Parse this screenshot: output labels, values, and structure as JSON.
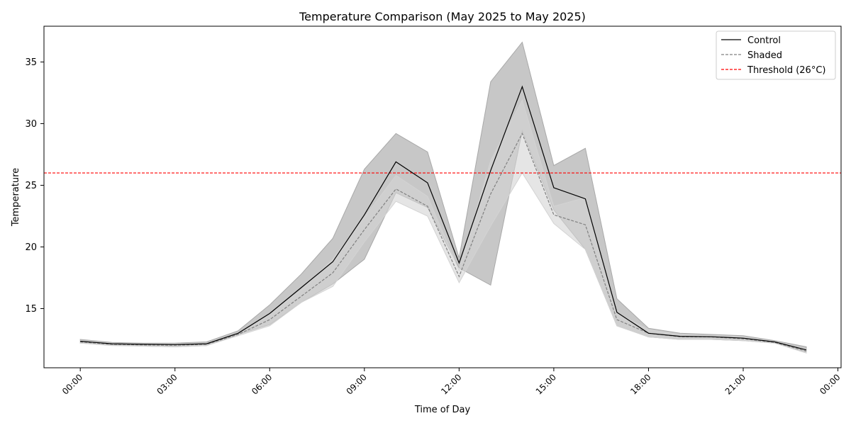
{
  "chart_data": {
    "type": "line",
    "title": "Temperature Comparison (May 2025 to May 2025)",
    "xlabel": "Time of Day",
    "ylabel": "Temperature",
    "x_hours": [
      0,
      1,
      2,
      3,
      4,
      5,
      6,
      7,
      8,
      9,
      10,
      11,
      12,
      13,
      14,
      15,
      16,
      17,
      18,
      19,
      20,
      21,
      22,
      23
    ],
    "x_ticks": [
      {
        "hour": 0,
        "label": "00:00"
      },
      {
        "hour": 3,
        "label": "03:00"
      },
      {
        "hour": 6,
        "label": "06:00"
      },
      {
        "hour": 9,
        "label": "09:00"
      },
      {
        "hour": 12,
        "label": "12:00"
      },
      {
        "hour": 15,
        "label": "15:00"
      },
      {
        "hour": 18,
        "label": "18:00"
      },
      {
        "hour": 21,
        "label": "21:00"
      },
      {
        "hour": 24,
        "label": "00:00"
      }
    ],
    "y_ticks": [
      15,
      20,
      25,
      30,
      35
    ],
    "xlim": [
      -1.15,
      24.1
    ],
    "ylim": [
      10.2,
      37.9
    ],
    "grid": false,
    "legend_position": "top-right",
    "series": [
      {
        "name": "Control",
        "color": "#000000",
        "dash": "solid",
        "values": [
          12.35,
          12.15,
          12.1,
          12.08,
          12.15,
          13.0,
          14.6,
          16.7,
          18.8,
          22.6,
          26.9,
          25.2,
          18.7,
          26.2,
          33.0,
          24.8,
          23.9,
          14.7,
          13.0,
          12.75,
          12.72,
          12.6,
          12.3,
          11.65
        ],
        "band_low": [
          12.2,
          12.05,
          11.95,
          11.9,
          12.0,
          12.9,
          13.7,
          15.5,
          17.0,
          19.0,
          24.4,
          23.2,
          18.3,
          16.9,
          29.4,
          23.0,
          19.8,
          13.6,
          12.7,
          12.5,
          12.5,
          12.4,
          12.2,
          11.4
        ],
        "band_high": [
          12.5,
          12.25,
          12.2,
          12.2,
          12.3,
          13.2,
          15.3,
          17.8,
          20.7,
          26.3,
          29.2,
          27.7,
          19.1,
          33.4,
          36.6,
          26.6,
          28.0,
          15.8,
          13.4,
          13.0,
          12.9,
          12.8,
          12.4,
          11.9
        ],
        "band_color": "#a9a9a9"
      },
      {
        "name": "Shaded",
        "color": "#808080",
        "dash": "dashed",
        "values": [
          12.3,
          12.1,
          12.05,
          12.03,
          12.1,
          12.9,
          14.1,
          16.0,
          17.9,
          21.4,
          24.7,
          23.3,
          17.6,
          24.3,
          29.2,
          22.6,
          21.8,
          14.1,
          13.0,
          12.72,
          12.7,
          12.55,
          12.25,
          11.55
        ],
        "band_low": [
          12.2,
          12.0,
          11.95,
          11.9,
          12.0,
          12.8,
          13.6,
          15.5,
          16.8,
          20.4,
          23.7,
          22.5,
          17.1,
          21.7,
          26.0,
          21.9,
          19.8,
          13.6,
          12.7,
          12.5,
          12.5,
          12.4,
          12.2,
          11.4
        ],
        "band_high": [
          12.4,
          12.2,
          12.15,
          12.15,
          12.2,
          13.0,
          14.6,
          16.5,
          19.0,
          22.4,
          25.8,
          24.1,
          18.1,
          27.0,
          31.9,
          23.3,
          24.0,
          14.6,
          13.3,
          12.9,
          12.8,
          12.7,
          12.35,
          11.7
        ],
        "band_color": "#d3d3d3"
      }
    ],
    "threshold": {
      "name": "Threshold (26°C)",
      "value": 26,
      "color": "#ff0000",
      "dash": "dashed"
    }
  }
}
